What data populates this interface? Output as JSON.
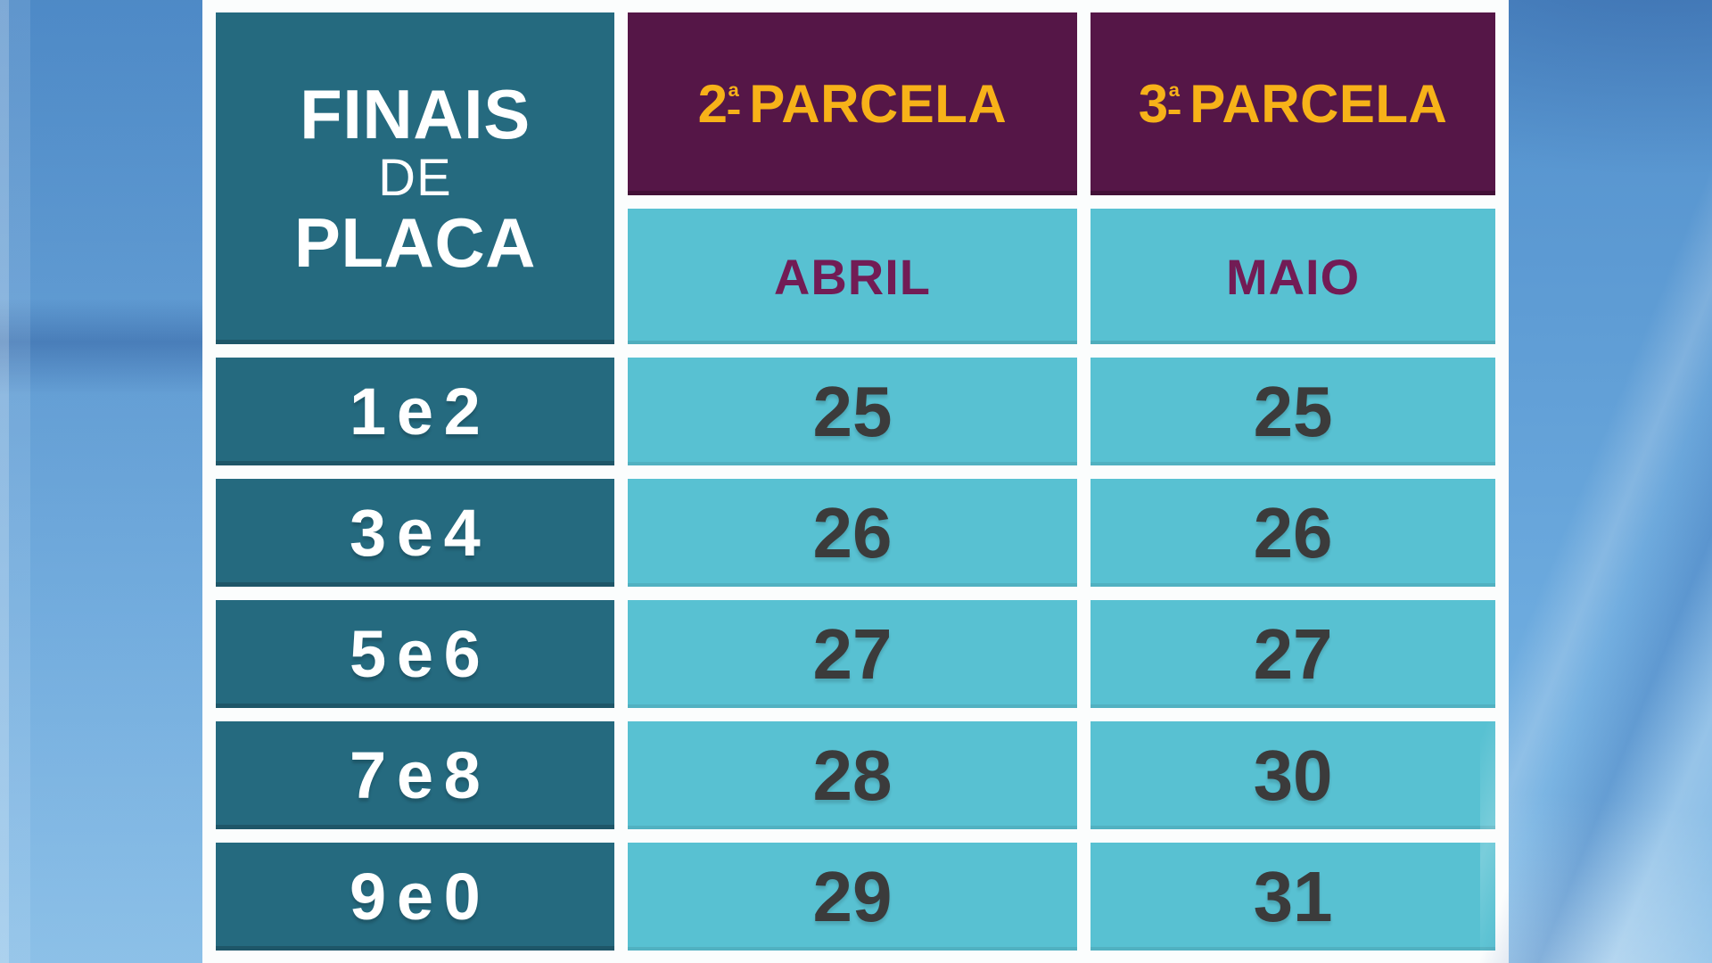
{
  "table": {
    "corner": {
      "line1": "FINAIS",
      "line2": "DE",
      "line3": "PLACA"
    },
    "columns": [
      {
        "number": "2",
        "ordinal": "ª",
        "word": "PARCELA",
        "month": "ABRIL"
      },
      {
        "number": "3",
        "ordinal": "ª",
        "word": "PARCELA",
        "month": "MAIO"
      }
    ],
    "rows": [
      {
        "plates": "1 e 2",
        "abril": "25",
        "maio": "25"
      },
      {
        "plates": "3 e 4",
        "abril": "26",
        "maio": "26"
      },
      {
        "plates": "5 e 6",
        "abril": "27",
        "maio": "27"
      },
      {
        "plates": "7 e 8",
        "abril": "28",
        "maio": "30"
      },
      {
        "plates": "9 e 0",
        "abril": "29",
        "maio": "31"
      }
    ]
  },
  "colors": {
    "header_teal": "#256a7f",
    "cell_cyan": "#58c1d2",
    "header_purple": "#551647",
    "parcela_yellow": "#f7b219",
    "month_plum": "#721c55",
    "value_charcoal": "#3b3b3b",
    "card_white": "#fbfdfd",
    "background_blue": "#5f9dd5"
  },
  "chart_data": {
    "type": "table",
    "columns": [
      "FINAIS DE PLACA",
      "2ª PARCELA (ABRIL)",
      "3ª PARCELA (MAIO)"
    ],
    "rows": [
      [
        "1 e 2",
        25,
        25
      ],
      [
        "3 e 4",
        26,
        26
      ],
      [
        "5 e 6",
        27,
        27
      ],
      [
        "7 e 8",
        28,
        30
      ],
      [
        "9 e 0",
        29,
        31
      ]
    ]
  }
}
